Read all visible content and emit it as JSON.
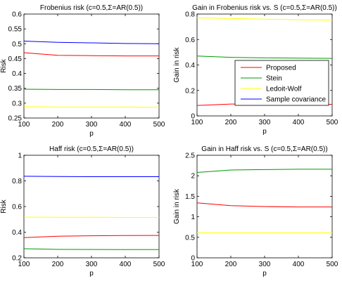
{
  "colors": {
    "proposed": "#ff0000",
    "stein": "#009900",
    "ledoit_wolf": "#ffff00",
    "sample_covariance": "#0000ff",
    "axes": "#000000",
    "background": "#ffffff"
  },
  "chart_data": [
    {
      "type": "line",
      "title": "Frobenius risk (c=0.5,Σ=AR(0.5))",
      "xlabel": "p",
      "ylabel": "Risk",
      "xlim": [
        100,
        500
      ],
      "ylim": [
        0.25,
        0.6
      ],
      "xticks": [
        100,
        200,
        300,
        400,
        500
      ],
      "yticks": [
        0.25,
        0.3,
        0.35,
        0.4,
        0.45,
        0.5,
        0.55,
        0.6
      ],
      "ytick_labels": [
        "0.25",
        "0.3",
        "0.35",
        "0.4",
        "0.45",
        "0.5",
        "0.55",
        "0.6"
      ],
      "x": [
        100,
        200,
        300,
        400,
        500
      ],
      "series": [
        {
          "key": "sample_covariance",
          "values": [
            0.509,
            0.505,
            0.503,
            0.501,
            0.5
          ]
        },
        {
          "key": "proposed",
          "values": [
            0.47,
            0.461,
            0.46,
            0.459,
            0.459
          ]
        },
        {
          "key": "stein",
          "values": [
            0.347,
            0.346,
            0.346,
            0.345,
            0.345
          ]
        },
        {
          "key": "ledoit_wolf",
          "values": [
            0.288,
            0.287,
            0.287,
            0.287,
            0.286
          ]
        }
      ]
    },
    {
      "type": "line",
      "title": "Gain in Frobenius risk vs. S (c=0.5,Σ=AR(0.5))",
      "xlabel": "p",
      "ylabel": "Gain in risk",
      "xlim": [
        100,
        500
      ],
      "ylim": [
        0,
        0.8
      ],
      "xticks": [
        100,
        200,
        300,
        400,
        500
      ],
      "yticks": [
        0,
        0.2,
        0.4,
        0.6,
        0.8
      ],
      "ytick_labels": [
        "0",
        "0.2",
        "0.4",
        "0.6",
        "0.8"
      ],
      "x": [
        100,
        200,
        300,
        400,
        500
      ],
      "series": [
        {
          "key": "ledoit_wolf",
          "values": [
            0.77,
            0.765,
            0.76,
            0.756,
            0.753
          ]
        },
        {
          "key": "stein",
          "values": [
            0.47,
            0.46,
            0.456,
            0.454,
            0.452
          ]
        },
        {
          "key": "proposed",
          "values": [
            0.082,
            0.093,
            0.093,
            0.092,
            0.091
          ]
        }
      ],
      "legend": {
        "position": "right",
        "entries": [
          {
            "key": "proposed",
            "label": "Proposed"
          },
          {
            "key": "stein",
            "label": "Stein"
          },
          {
            "key": "ledoit_wolf",
            "label": "Ledoit-Wolf"
          },
          {
            "key": "sample_covariance",
            "label": "Sample covariance"
          }
        ]
      }
    },
    {
      "type": "line",
      "title": "Haff risk (c=0.5,Σ=AR(0.5))",
      "xlabel": "p",
      "ylabel": "Risk",
      "xlim": [
        100,
        500
      ],
      "ylim": [
        0.2,
        1
      ],
      "xticks": [
        100,
        200,
        300,
        400,
        500
      ],
      "yticks": [
        0.2,
        0.4,
        0.6,
        0.8,
        1
      ],
      "ytick_labels": [
        "0.2",
        "0.4",
        "0.6",
        "0.8",
        "1"
      ],
      "x": [
        100,
        200,
        300,
        400,
        500
      ],
      "series": [
        {
          "key": "sample_covariance",
          "values": [
            0.836,
            0.834,
            0.833,
            0.833,
            0.833
          ]
        },
        {
          "key": "ledoit_wolf",
          "values": [
            0.517,
            0.516,
            0.516,
            0.515,
            0.515
          ]
        },
        {
          "key": "proposed",
          "values": [
            0.358,
            0.368,
            0.372,
            0.374,
            0.375
          ]
        },
        {
          "key": "stein",
          "values": [
            0.271,
            0.266,
            0.265,
            0.264,
            0.264
          ]
        }
      ]
    },
    {
      "type": "line",
      "title": "Gain in Haff risk vs. S (c=0.5,Σ=AR(0.5))",
      "xlabel": "p",
      "ylabel": "Gain in risk",
      "xlim": [
        100,
        500
      ],
      "ylim": [
        0,
        2.5
      ],
      "xticks": [
        100,
        200,
        300,
        400,
        500
      ],
      "yticks": [
        0,
        0.5,
        1,
        1.5,
        2,
        2.5
      ],
      "ytick_labels": [
        "0",
        "0.5",
        "1",
        "1.5",
        "2",
        "2.5"
      ],
      "x": [
        100,
        200,
        300,
        400,
        500
      ],
      "series": [
        {
          "key": "stein",
          "values": [
            2.08,
            2.14,
            2.15,
            2.16,
            2.16
          ]
        },
        {
          "key": "proposed",
          "values": [
            1.34,
            1.27,
            1.25,
            1.24,
            1.24
          ]
        },
        {
          "key": "ledoit_wolf",
          "values": [
            0.61,
            0.61,
            0.61,
            0.61,
            0.61
          ]
        }
      ]
    }
  ]
}
